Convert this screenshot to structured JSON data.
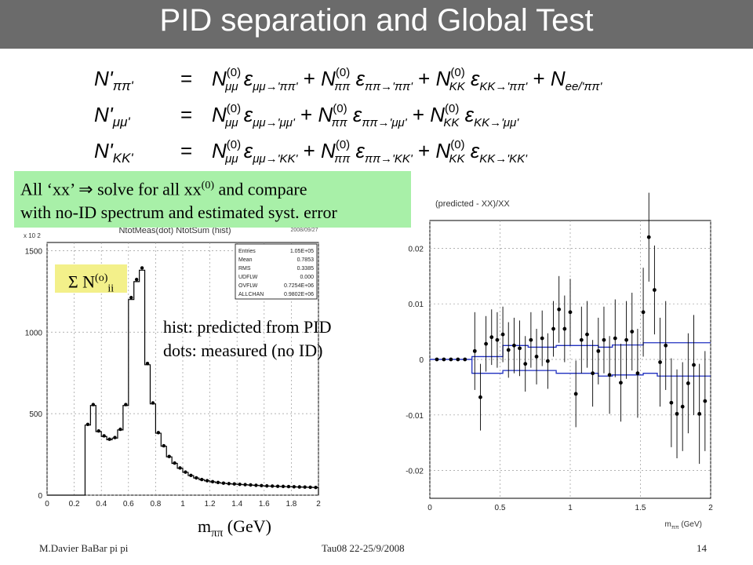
{
  "slide": {
    "title": "PID separation and Global Test",
    "equation_lines": [
      "N'ππ' = N(0)μμ εμμ→'ππ' + N(0)ππ εππ→'ππ' + N(0)KK εKK→'ππ' + Nee/'ππ'",
      "N'μμ' = N(0)μμ εμμ→'μμ' + N(0)ππ εππ→'μμ' + N(0)KK εKK→'μμ'",
      "N'KK' = N(0)μμ εμμ→'KK' + N(0)ππ εππ→'KK' + N(0)KK εKK→'KK'"
    ],
    "callout_line1_a": "All ‘xx’ ⇒ solve for all xx",
    "callout_sup": "(0)",
    "callout_line1_b": " and compare",
    "callout_line2": "with no-ID spectrum and estimated syst. error",
    "sigma_sum": "Σ N",
    "sigma_sup": "(o)",
    "sigma_sub": "ii",
    "hist_note_1": "hist: predicted from PID",
    "hist_note_2": "dots: measured (no ID)",
    "xunit_m": "m",
    "xunit_sub": "ππ",
    "xunit_rest": " (GeV)",
    "footer_author": "M.Davier    BaBar pi pi",
    "footer_conf": "Tau08  22-25/9/2008",
    "footer_page": "14"
  },
  "chart_data": [
    {
      "type": "bar",
      "title": "NtotMeas(dot) NtotSum (hist)",
      "date_stamp": "2008/09/27",
      "y_multiplier_label": "x 10 2",
      "x_ticks": [
        "0",
        "0.2",
        "0.4",
        "0.6",
        "0.8",
        "1",
        "1.2",
        "1.4",
        "1.6",
        "1.8",
        "2"
      ],
      "y_ticks": [
        "0",
        "500",
        "1000",
        "1500"
      ],
      "xlim": [
        0,
        2
      ],
      "ylim": [
        0,
        1550
      ],
      "bin_width": 0.04,
      "x_start": 0.28,
      "values": [
        430,
        550,
        390,
        360,
        340,
        350,
        400,
        550,
        1200,
        1310,
        1380,
        800,
        560,
        380,
        300,
        235,
        195,
        165,
        140,
        120,
        105,
        95,
        88,
        82,
        77,
        73,
        70,
        68,
        66,
        64,
        62,
        60,
        58,
        56,
        55,
        54,
        53,
        52,
        51,
        50,
        49,
        48,
        47
      ],
      "stats": [
        {
          "label": "Entries",
          "value": "1.05E+05"
        },
        {
          "label": "Mean",
          "value": "0.7853"
        },
        {
          "label": "RMS",
          "value": "0.3385"
        },
        {
          "label": "UDFLW",
          "value": "0.000"
        },
        {
          "label": "OVFLW",
          "value": "0.7254E+06"
        },
        {
          "label": "ALLCHAN",
          "value": "0.9802E+06"
        }
      ]
    },
    {
      "type": "scatter",
      "title": "(predicted - XX)/XX",
      "xlabel_m": "m",
      "xlabel_sub": "ππ",
      "xlabel_rest": " (GeV)",
      "x_ticks": [
        "0",
        "0.5",
        "1",
        "1.5",
        "2"
      ],
      "y_ticks": [
        "0.02",
        "0.01",
        "0",
        "-0.01",
        "-0.02"
      ],
      "xlim": [
        0,
        2
      ],
      "ylim": [
        -0.025,
        0.025
      ],
      "points_x": [
        0.05,
        0.1,
        0.15,
        0.2,
        0.25,
        0.32,
        0.36,
        0.4,
        0.44,
        0.48,
        0.52,
        0.56,
        0.6,
        0.64,
        0.68,
        0.72,
        0.76,
        0.8,
        0.84,
        0.88,
        0.92,
        0.96,
        1.0,
        1.04,
        1.08,
        1.12,
        1.16,
        1.2,
        1.24,
        1.28,
        1.32,
        1.36,
        1.4,
        1.44,
        1.48,
        1.52,
        1.56,
        1.6,
        1.64,
        1.68,
        1.72,
        1.76,
        1.8,
        1.84,
        1.88,
        1.92,
        1.96
      ],
      "points_y": [
        0,
        0,
        0,
        0,
        0,
        0.0015,
        -0.0068,
        0.0028,
        0.004,
        0.0035,
        0.0045,
        0.0017,
        0.0025,
        0.002,
        -0.0008,
        0.0035,
        0.0005,
        0.0038,
        -0.0003,
        0.0055,
        0.009,
        0.0055,
        0.0085,
        -0.0062,
        0.0035,
        0.0045,
        -0.0025,
        0.0015,
        0.0035,
        -0.0028,
        0.0038,
        -0.0042,
        0.0035,
        0.005,
        -0.0025,
        0.0085,
        0.022,
        0.0125,
        -0.0005,
        0.0025,
        -0.0078,
        -0.0098,
        -0.0085,
        -0.0043,
        -0.001,
        -0.0098,
        -0.0075
      ],
      "errors": [
        0,
        0,
        0,
        0,
        0,
        0.007,
        0.006,
        0.005,
        0.005,
        0.005,
        0.005,
        0.005,
        0.005,
        0.005,
        0.005,
        0.005,
        0.005,
        0.005,
        0.005,
        0.005,
        0.006,
        0.006,
        0.006,
        0.006,
        0.006,
        0.006,
        0.006,
        0.006,
        0.006,
        0.007,
        0.007,
        0.007,
        0.007,
        0.007,
        0.008,
        0.008,
        0.008,
        0.008,
        0.008,
        0.008,
        0.008,
        0.008,
        0.008,
        0.009,
        0.009,
        0.009,
        0.009
      ],
      "band_x": [
        0,
        0.3,
        0.3,
        0.52,
        0.52,
        0.7,
        0.7,
        0.9,
        0.9,
        1.2,
        1.2,
        1.3,
        1.3,
        1.52,
        1.52,
        1.62,
        1.62,
        2.0
      ],
      "band_upper": [
        0,
        0,
        0.0005,
        0.0005,
        0.0025,
        0.0025,
        0.0022,
        0.0022,
        0.0025,
        0.0025,
        0.0022,
        0.0022,
        0.0026,
        0.0026,
        0.003,
        0.003,
        0.003,
        0.003
      ],
      "band_lower": [
        0,
        0,
        -0.0025,
        -0.0025,
        -0.002,
        -0.002,
        -0.002,
        -0.002,
        -0.0025,
        -0.0025,
        -0.003,
        -0.003,
        -0.0028,
        -0.0028,
        -0.0025,
        -0.0025,
        -0.003,
        -0.003
      ]
    }
  ]
}
